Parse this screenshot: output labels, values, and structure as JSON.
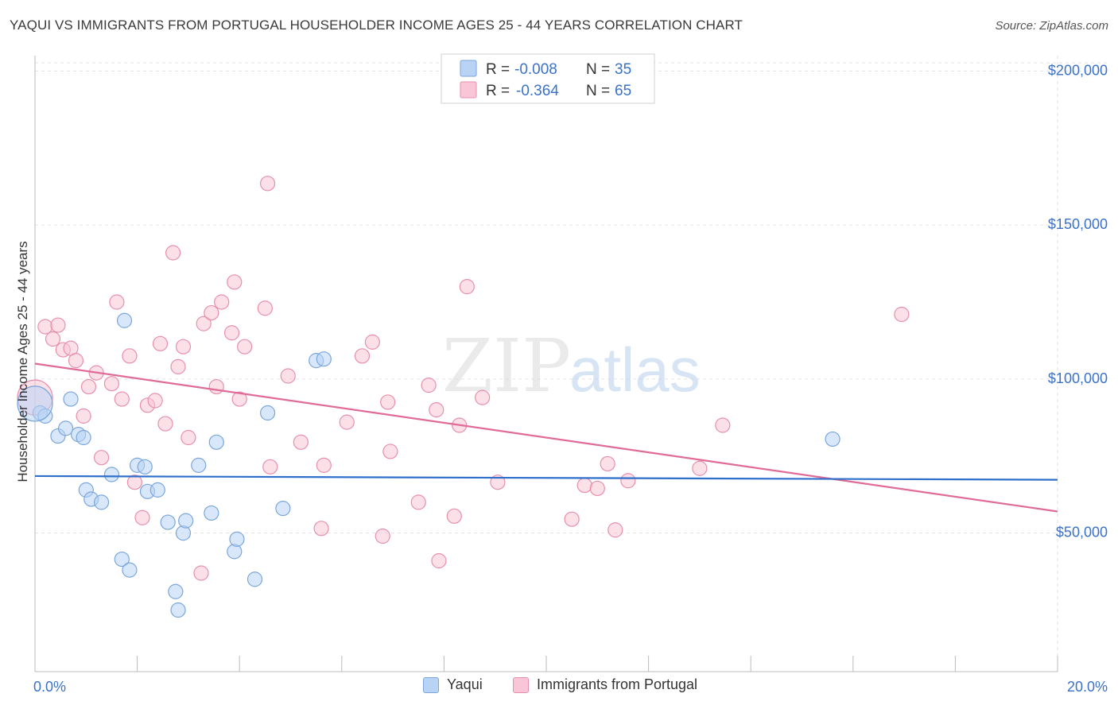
{
  "header": {
    "title": "YAQUI VS IMMIGRANTS FROM PORTUGAL HOUSEHOLDER INCOME AGES 25 - 44 YEARS CORRELATION CHART",
    "source": "Source: ZipAtlas.com"
  },
  "watermark": {
    "zip": "ZIP",
    "atlas": "atlas"
  },
  "colors": {
    "yaqui_fill": "#b8d3f4",
    "yaqui_stroke": "#7aa6dc",
    "yaqui_line": "#2f6fcc",
    "portugal_fill": "#f8c6d6",
    "portugal_stroke": "#e78fac",
    "portugal_line": "#e06b97",
    "value_text": "#3a72c9"
  },
  "legend_top": {
    "rows": [
      {
        "r_label": "R = ",
        "r_value": "-0.008",
        "n_label": "N = ",
        "n_value": "35"
      },
      {
        "r_label": "R = ",
        "r_value": "-0.364",
        "n_label": "N = ",
        "n_value": "65"
      }
    ]
  },
  "chart_data": {
    "type": "scatter",
    "title": "YAQUI VS IMMIGRANTS FROM PORTUGAL HOUSEHOLDER INCOME AGES 25 - 44 YEARS CORRELATION CHART",
    "xlabel": "",
    "ylabel": "Householder Income Ages 25 - 44 years",
    "xlim": [
      0,
      20
    ],
    "ylim": [
      5000,
      205000
    ],
    "x_tick_labels": [
      "0.0%",
      "20.0%"
    ],
    "y_ticks": [
      50000,
      100000,
      150000,
      200000
    ],
    "y_tick_labels": [
      "$50,000",
      "$100,000",
      "$150,000",
      "$200,000"
    ],
    "grid": true,
    "legend_placement": "bottom-center",
    "series": [
      {
        "name": "Yaqui",
        "trend": [
          [
            0,
            68500
          ],
          [
            20,
            67300
          ]
        ],
        "points": [
          [
            0.1,
            89000
          ],
          [
            0.2,
            88000
          ],
          [
            0.45,
            81500
          ],
          [
            0.6,
            84000
          ],
          [
            0.7,
            93500
          ],
          [
            0.85,
            82000
          ],
          [
            0.95,
            81000
          ],
          [
            1.0,
            64000
          ],
          [
            1.1,
            61000
          ],
          [
            1.3,
            60000
          ],
          [
            1.5,
            69000
          ],
          [
            1.7,
            41500
          ],
          [
            1.75,
            119000
          ],
          [
            1.85,
            38000
          ],
          [
            2.0,
            72000
          ],
          [
            2.15,
            71500
          ],
          [
            2.2,
            63500
          ],
          [
            2.4,
            64000
          ],
          [
            2.6,
            53500
          ],
          [
            2.75,
            31000
          ],
          [
            2.8,
            25000
          ],
          [
            2.9,
            50000
          ],
          [
            2.95,
            54000
          ],
          [
            3.2,
            72000
          ],
          [
            3.45,
            56500
          ],
          [
            3.55,
            79500
          ],
          [
            3.9,
            44000
          ],
          [
            3.95,
            48000
          ],
          [
            4.3,
            35000
          ],
          [
            4.55,
            89000
          ],
          [
            4.85,
            58000
          ],
          [
            5.5,
            106000
          ],
          [
            5.65,
            106500
          ],
          [
            15.6,
            80500
          ],
          [
            0.0,
            92000
          ]
        ]
      },
      {
        "name": "Immigrants from Portugal",
        "trend": [
          [
            0,
            105000
          ],
          [
            20,
            57000
          ]
        ],
        "points": [
          [
            0.0,
            94000
          ],
          [
            0.2,
            117000
          ],
          [
            0.35,
            113000
          ],
          [
            0.45,
            117500
          ],
          [
            0.55,
            109500
          ],
          [
            0.7,
            110000
          ],
          [
            0.8,
            106000
          ],
          [
            0.95,
            88000
          ],
          [
            1.05,
            97500
          ],
          [
            1.2,
            102000
          ],
          [
            1.3,
            74500
          ],
          [
            1.5,
            98500
          ],
          [
            1.6,
            125000
          ],
          [
            1.7,
            93500
          ],
          [
            1.85,
            107500
          ],
          [
            1.95,
            66500
          ],
          [
            2.1,
            55000
          ],
          [
            2.2,
            91500
          ],
          [
            2.35,
            93000
          ],
          [
            2.45,
            111500
          ],
          [
            2.55,
            85500
          ],
          [
            2.7,
            141000
          ],
          [
            2.8,
            104000
          ],
          [
            2.9,
            110500
          ],
          [
            3.0,
            81000
          ],
          [
            3.25,
            37000
          ],
          [
            3.3,
            118000
          ],
          [
            3.45,
            121500
          ],
          [
            3.55,
            97500
          ],
          [
            3.65,
            125000
          ],
          [
            3.85,
            115000
          ],
          [
            3.9,
            131500
          ],
          [
            4.0,
            93500
          ],
          [
            4.1,
            110500
          ],
          [
            4.5,
            123000
          ],
          [
            4.55,
            163500
          ],
          [
            4.6,
            71500
          ],
          [
            4.95,
            101000
          ],
          [
            5.2,
            79500
          ],
          [
            5.6,
            51500
          ],
          [
            5.65,
            72000
          ],
          [
            6.1,
            86000
          ],
          [
            6.4,
            107500
          ],
          [
            6.6,
            112000
          ],
          [
            6.8,
            49000
          ],
          [
            6.9,
            92500
          ],
          [
            6.95,
            76500
          ],
          [
            7.5,
            60000
          ],
          [
            7.7,
            98000
          ],
          [
            7.85,
            90000
          ],
          [
            7.9,
            41000
          ],
          [
            8.2,
            55500
          ],
          [
            8.3,
            85000
          ],
          [
            8.45,
            130000
          ],
          [
            8.75,
            94000
          ],
          [
            9.05,
            66500
          ],
          [
            10.5,
            54500
          ],
          [
            10.75,
            65500
          ],
          [
            11.0,
            64500
          ],
          [
            11.2,
            72500
          ],
          [
            11.35,
            51000
          ],
          [
            11.6,
            67000
          ],
          [
            13.0,
            71000
          ],
          [
            13.45,
            85000
          ],
          [
            16.95,
            121000
          ]
        ]
      }
    ]
  }
}
